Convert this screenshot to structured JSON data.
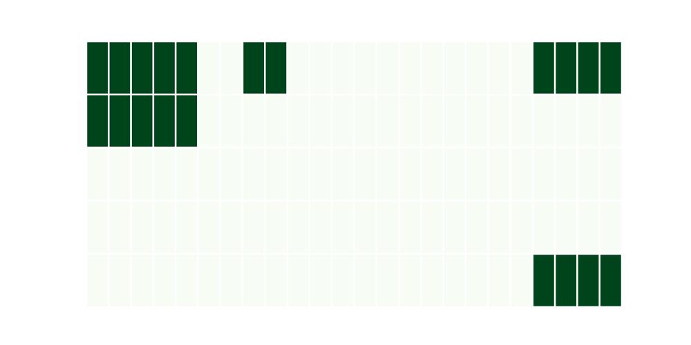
{
  "chart_data": {
    "type": "heatmap",
    "title": "",
    "xlabel": "",
    "ylabel": "",
    "rows": 5,
    "columns": 24,
    "grid": false,
    "legend": "none",
    "colors": {
      "low": "#f7fcf5",
      "high": "#00441b",
      "cell_border": "#ffffff",
      "background": "#ffffff"
    },
    "values": [
      [
        1,
        1,
        1,
        1,
        1,
        0,
        0,
        1,
        1,
        0,
        0,
        0,
        0,
        0,
        0,
        0,
        0,
        0,
        0,
        0,
        1,
        1,
        1,
        1
      ],
      [
        1,
        1,
        1,
        1,
        1,
        0,
        0,
        0,
        0,
        0,
        0,
        0,
        0,
        0,
        0,
        0,
        0,
        0,
        0,
        0,
        0,
        0,
        0,
        0
      ],
      [
        0,
        0,
        0,
        0,
        0,
        0,
        0,
        0,
        0,
        0,
        0,
        0,
        0,
        0,
        0,
        0,
        0,
        0,
        0,
        0,
        0,
        0,
        0,
        0
      ],
      [
        0,
        0,
        0,
        0,
        0,
        0,
        0,
        0,
        0,
        0,
        0,
        0,
        0,
        0,
        0,
        0,
        0,
        0,
        0,
        0,
        0,
        0,
        0,
        0
      ],
      [
        0,
        0,
        0,
        0,
        0,
        0,
        0,
        0,
        0,
        0,
        0,
        0,
        0,
        0,
        0,
        0,
        0,
        0,
        0,
        0,
        1,
        1,
        1,
        1
      ]
    ]
  }
}
